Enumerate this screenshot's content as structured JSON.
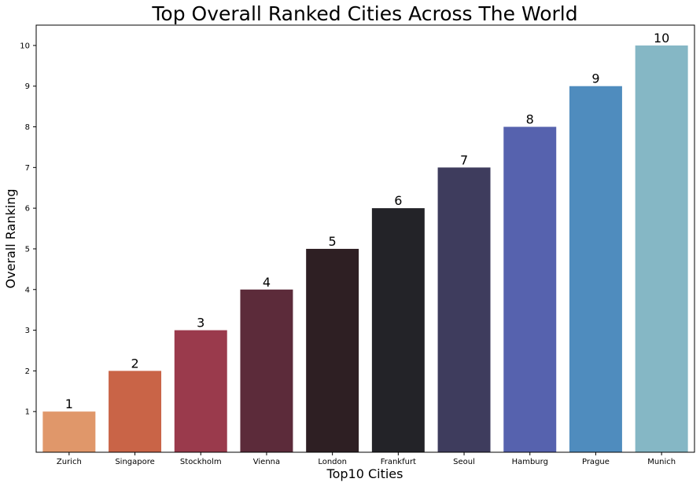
{
  "chart_data": {
    "type": "bar",
    "title": "Top Overall Ranked Cities Across The World",
    "xlabel": "Top10 Cities",
    "ylabel": "Overall Ranking",
    "categories": [
      "Zurich",
      "Singapore",
      "Stockholm",
      "Vienna",
      "London",
      "Frankfurt",
      "Seoul",
      "Hamburg",
      "Prague",
      "Munich"
    ],
    "values": [
      1,
      2,
      3,
      4,
      5,
      6,
      7,
      8,
      9,
      10
    ],
    "data_labels": [
      "1",
      "2",
      "3",
      "4",
      "5",
      "6",
      "7",
      "8",
      "9",
      "10"
    ],
    "colors": [
      "#e0976a",
      "#c96447",
      "#9a3a4c",
      "#5c2b3a",
      "#2e1f23",
      "#232328",
      "#3e3c5d",
      "#5662ae",
      "#4f8cbe",
      "#85b7c5"
    ],
    "ylim": [
      0,
      10.5
    ],
    "yticks": [
      1,
      2,
      3,
      4,
      5,
      6,
      7,
      8,
      9,
      10
    ],
    "grid": false,
    "legend": "none"
  }
}
